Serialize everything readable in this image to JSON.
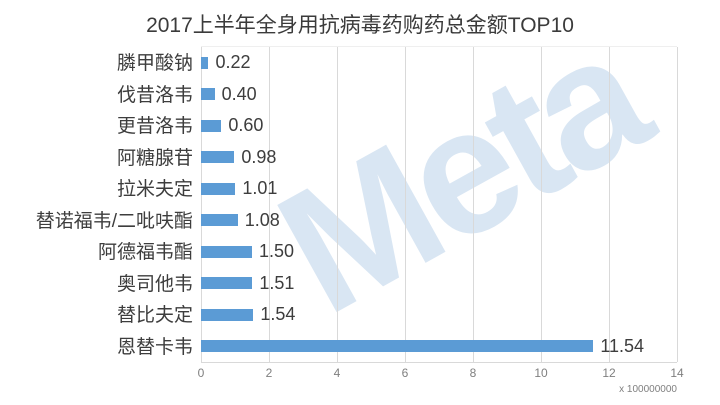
{
  "watermark": {
    "text": "Meta",
    "color": "#d9e6f3"
  },
  "chart_data": {
    "type": "bar",
    "orientation": "horizontal",
    "title": "2017上半年全身用抗病毒药购药总金额TOP10",
    "categories": [
      "膦甲酸钠",
      "伐昔洛韦",
      "更昔洛韦",
      "阿糖腺苷",
      "拉米夫定",
      "替诺福韦/二吡呋酯",
      "阿德福韦酯",
      "奥司他韦",
      "替比夫定",
      "恩替卡韦"
    ],
    "values": [
      0.22,
      0.4,
      0.6,
      0.98,
      1.01,
      1.08,
      1.5,
      1.51,
      1.54,
      11.54
    ],
    "value_labels": [
      "0.22",
      "0.40",
      "0.60",
      "0.98",
      "1.01",
      "1.08",
      "1.50",
      "1.51",
      "1.54",
      "11.54"
    ],
    "x_ticks": [
      0,
      2,
      4,
      6,
      8,
      10,
      12,
      14
    ],
    "xlim": [
      0,
      14
    ],
    "xlabel": "",
    "ylabel": "",
    "multiplier_label": "x 100000000",
    "grid": true,
    "legend": false,
    "bar_color": "#5b9bd5",
    "gridline_color": "#d9d9d9",
    "text_color": "#3d3d3d",
    "axis_text_color": "#7f7f7f"
  }
}
